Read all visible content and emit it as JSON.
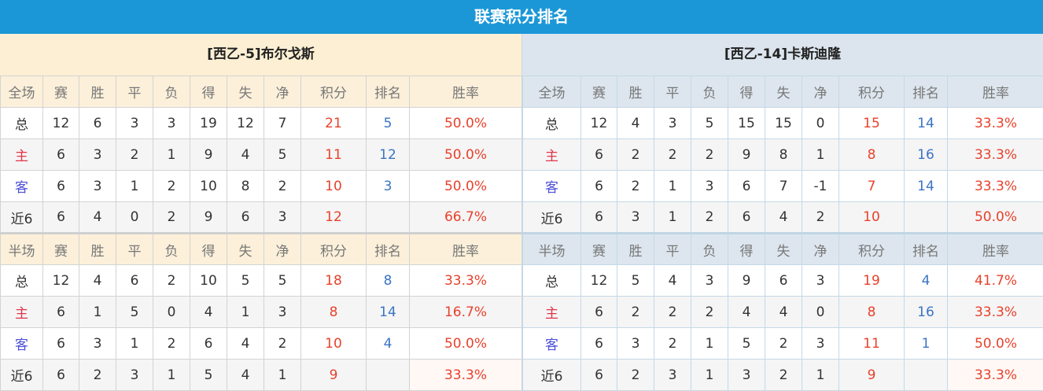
{
  "title": "联赛积分排名",
  "colors": {
    "header_bar": "#1b97d7",
    "points": "#e8412c",
    "rank": "#3a74c4"
  },
  "columns": [
    "赛",
    "胜",
    "平",
    "负",
    "得",
    "失",
    "净",
    "积分",
    "排名",
    "胜率"
  ],
  "teams": [
    {
      "name": "[西乙-5]布尔戈斯",
      "sections": [
        {
          "label": "全场",
          "rows": [
            [
              "总",
              "12",
              "6",
              "3",
              "3",
              "19",
              "12",
              "7",
              "21",
              "5",
              "50.0%"
            ],
            [
              "主",
              "6",
              "3",
              "2",
              "1",
              "9",
              "4",
              "5",
              "11",
              "12",
              "50.0%"
            ],
            [
              "客",
              "6",
              "3",
              "1",
              "2",
              "10",
              "8",
              "2",
              "10",
              "3",
              "50.0%"
            ],
            [
              "近6",
              "6",
              "4",
              "0",
              "2",
              "9",
              "6",
              "3",
              "12",
              "",
              "66.7%"
            ]
          ]
        },
        {
          "label": "半场",
          "rows": [
            [
              "总",
              "12",
              "4",
              "6",
              "2",
              "10",
              "5",
              "5",
              "18",
              "8",
              "33.3%"
            ],
            [
              "主",
              "6",
              "1",
              "5",
              "0",
              "4",
              "1",
              "3",
              "8",
              "14",
              "16.7%"
            ],
            [
              "客",
              "6",
              "3",
              "1",
              "2",
              "6",
              "4",
              "2",
              "10",
              "4",
              "50.0%"
            ],
            [
              "近6",
              "6",
              "2",
              "3",
              "1",
              "5",
              "4",
              "1",
              "9",
              "",
              "33.3%"
            ]
          ]
        }
      ]
    },
    {
      "name": "[西乙-14]卡斯迪隆",
      "sections": [
        {
          "label": "全场",
          "rows": [
            [
              "总",
              "12",
              "4",
              "3",
              "5",
              "15",
              "15",
              "0",
              "15",
              "14",
              "33.3%"
            ],
            [
              "主",
              "6",
              "2",
              "2",
              "2",
              "9",
              "8",
              "1",
              "8",
              "16",
              "33.3%"
            ],
            [
              "客",
              "6",
              "2",
              "1",
              "3",
              "6",
              "7",
              "-1",
              "7",
              "14",
              "33.3%"
            ],
            [
              "近6",
              "6",
              "3",
              "1",
              "2",
              "6",
              "4",
              "2",
              "10",
              "",
              "50.0%"
            ]
          ]
        },
        {
          "label": "半场",
          "rows": [
            [
              "总",
              "12",
              "5",
              "4",
              "3",
              "9",
              "6",
              "3",
              "19",
              "4",
              "41.7%"
            ],
            [
              "主",
              "6",
              "2",
              "2",
              "2",
              "4",
              "4",
              "0",
              "8",
              "16",
              "33.3%"
            ],
            [
              "客",
              "6",
              "3",
              "2",
              "1",
              "5",
              "2",
              "3",
              "11",
              "1",
              "50.0%"
            ],
            [
              "近6",
              "6",
              "2",
              "3",
              "1",
              "3",
              "2",
              "1",
              "9",
              "",
              "33.3%"
            ]
          ]
        }
      ]
    }
  ]
}
